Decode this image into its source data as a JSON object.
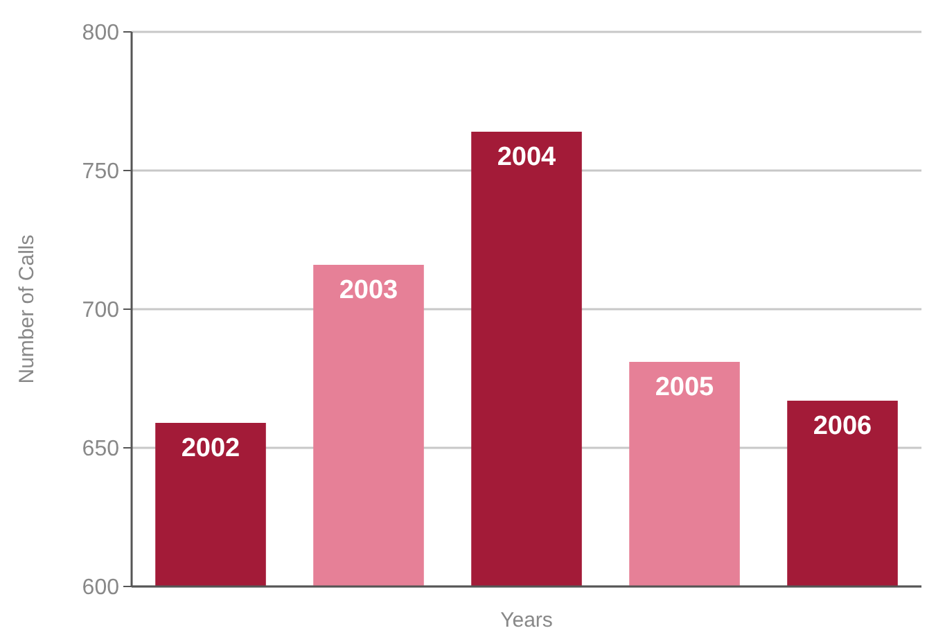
{
  "chart_data": {
    "type": "bar",
    "xlabel": "Years",
    "ylabel": "Number of Calls",
    "categories": [
      "2002",
      "2003",
      "2004",
      "2005",
      "2006"
    ],
    "values": [
      659,
      716,
      764,
      681,
      667
    ],
    "colors": [
      "#a31b38",
      "#e68097",
      "#a31b38",
      "#e68097",
      "#a31b38"
    ],
    "ylim": [
      600,
      800
    ],
    "yticks": [
      600,
      650,
      700,
      750,
      800
    ],
    "grid": "y"
  }
}
